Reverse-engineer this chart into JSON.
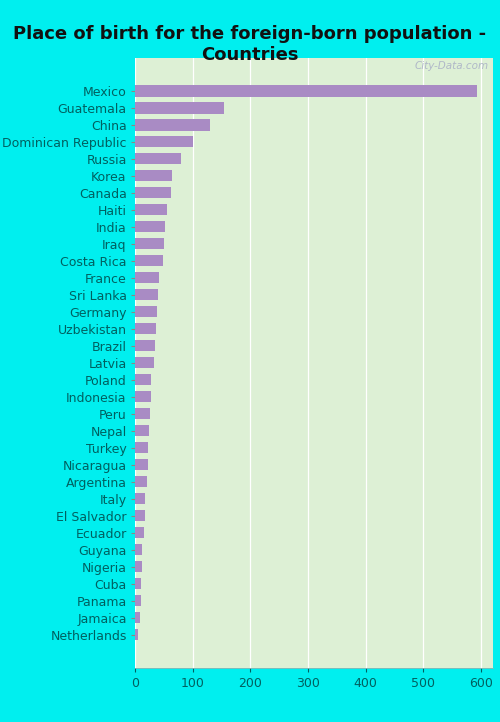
{
  "title": "Place of birth for the foreign-born population -\nCountries",
  "categories": [
    "Mexico",
    "Guatemala",
    "China",
    "Dominican Republic",
    "Russia",
    "Korea",
    "Canada",
    "Haiti",
    "India",
    "Iraq",
    "Costa Rica",
    "France",
    "Sri Lanka",
    "Germany",
    "Uzbekistan",
    "Brazil",
    "Latvia",
    "Poland",
    "Indonesia",
    "Peru",
    "Nepal",
    "Turkey",
    "Nicaragua",
    "Argentina",
    "Italy",
    "El Salvador",
    "Ecuador",
    "Guyana",
    "Nigeria",
    "Cuba",
    "Panama",
    "Jamaica",
    "Netherlands"
  ],
  "values": [
    593,
    155,
    130,
    100,
    80,
    65,
    63,
    55,
    52,
    50,
    48,
    42,
    40,
    38,
    36,
    35,
    33,
    28,
    27,
    26,
    24,
    23,
    22,
    21,
    18,
    17,
    15,
    13,
    12,
    11,
    10,
    9,
    5
  ],
  "bar_color": "#a98bc4",
  "background_color": "#ddf0d5",
  "outer_background": "#00efef",
  "title_fontsize": 13,
  "tick_fontsize": 9,
  "xlim": [
    0,
    620
  ],
  "xticks": [
    0,
    100,
    200,
    300,
    400,
    500,
    600
  ]
}
